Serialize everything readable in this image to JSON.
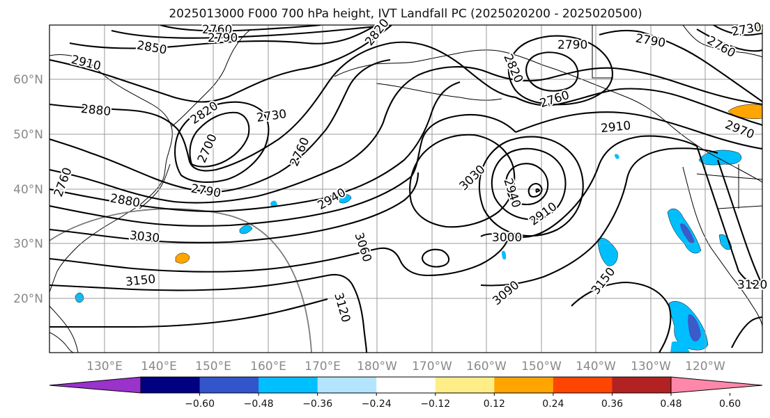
{
  "title": "2025013000 F000 700 hPa height, IVT Landfall PC (2025020200 - 2025020500)",
  "map": {
    "lon_labels": [
      "130°E",
      "140°E",
      "150°E",
      "160°E",
      "170°E",
      "180°W",
      "170°W",
      "160°W",
      "150°W",
      "140°W",
      "130°W",
      "120°W"
    ],
    "lat_labels": [
      "60°N",
      "50°N",
      "40°N",
      "30°N",
      "20°N"
    ],
    "contour_labels": [
      "2760",
      "2790",
      "2820",
      "2850",
      "2910",
      "2880",
      "2820",
      "2730",
      "2700",
      "2760",
      "2790",
      "2880",
      "3030",
      "2940",
      "3030",
      "3060",
      "3120",
      "3150",
      "2940",
      "2910",
      "3000",
      "3090",
      "3150",
      "2790",
      "2760",
      "2820",
      "2790",
      "2760",
      "2910",
      "2970",
      "3120",
      "2730",
      "2760"
    ],
    "colors": {
      "contour": "#000000",
      "coastline": "#000000",
      "gridline": "#999999",
      "range_ring": "#7a7a7a",
      "blue_fill": "#00bfff",
      "blue_dark": "#3c5ac8",
      "orange_fill": "#ffa500"
    }
  },
  "colorbar": {
    "ticks": [
      "−0.60",
      "−0.48",
      "−0.36",
      "−0.24",
      "−0.12",
      "0.12",
      "0.24",
      "0.36",
      "0.48",
      "0.60"
    ],
    "colors": [
      "#9933cc",
      "#000080",
      "#3355cc",
      "#00bfff",
      "#b3e5ff",
      "#ffffff",
      "#ffee88",
      "#ffa500",
      "#ff4500",
      "#b22222",
      "#ff88aa"
    ]
  }
}
